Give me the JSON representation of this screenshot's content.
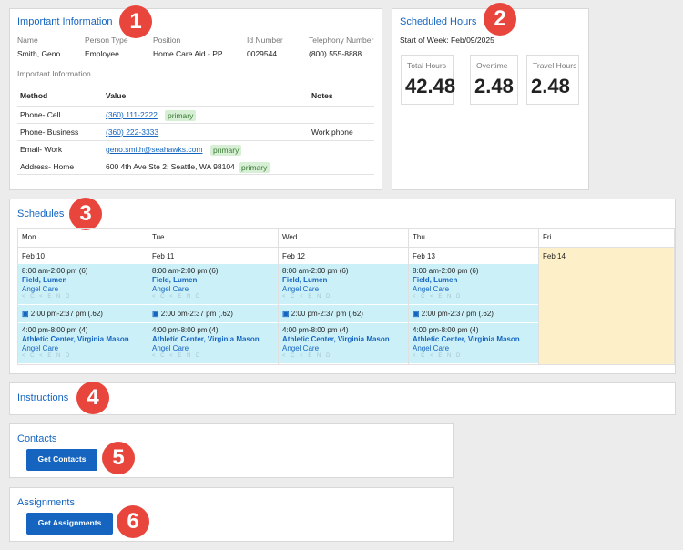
{
  "important_info": {
    "title": "Important Information",
    "name_label": "Name",
    "name": "Smith, Geno",
    "person_type_label": "Person Type",
    "person_type": "Employee",
    "position_label": "Position",
    "position": "Home Care Aid - PP",
    "id_label": "Id Number",
    "id": "0029544",
    "phone_label": "Telephony Number",
    "phone": "(800) 555-8888",
    "sub_title": "Important Information",
    "col_method": "Method",
    "col_value": "Value",
    "col_notes": "Notes",
    "rows": [
      {
        "method": "Phone- Cell",
        "value": "(360) 111-2222",
        "badge": "primary",
        "notes": ""
      },
      {
        "method": "Phone- Business",
        "value": "(360) 222-3333",
        "badge": "",
        "notes": "Work phone"
      },
      {
        "method": "Email- Work",
        "value": "geno.smith@seahawks.com",
        "badge": "primary",
        "notes": ""
      },
      {
        "method": "Address- Home",
        "value": "600 4th Ave Ste 2; Seattle, WA 98104",
        "badge": "primary",
        "notes": ""
      }
    ]
  },
  "scheduled_hours": {
    "title": "Scheduled Hours",
    "start_of_week": "Start of Week: Feb/09/2025",
    "stats": [
      {
        "label": "Total Hours",
        "value": "42.48"
      },
      {
        "label": "Overtime",
        "value": "2.48"
      },
      {
        "label": "Travel Hours",
        "value": "2.48"
      }
    ]
  },
  "schedules": {
    "title": "Schedules",
    "days": [
      {
        "day": "Mon",
        "date": "Feb 10"
      },
      {
        "day": "Tue",
        "date": "Feb 11"
      },
      {
        "day": "Wed",
        "date": "Feb 12"
      },
      {
        "day": "Thu",
        "date": "Feb 13"
      },
      {
        "day": "Fri",
        "date": "Feb 14"
      }
    ],
    "shift1": {
      "time": "8:00 am-2:00 pm (6)",
      "location": "Field, Lumen",
      "agency": "Angel Care",
      "icons": "< C < E N D"
    },
    "travel": {
      "time": "2:00 pm-2:37 pm (.62)"
    },
    "shift2": {
      "time": "4:00 pm-8:00 pm (4)",
      "location": "Athletic Center, Virginia Mason",
      "agency": "Angel Care",
      "icons": "< C < E N D"
    }
  },
  "instructions": {
    "title": "Instructions"
  },
  "contacts": {
    "title": "Contacts",
    "button": "Get Contacts"
  },
  "assignments": {
    "title": "Assignments",
    "button": "Get Assignments"
  },
  "markers": [
    "1",
    "2",
    "3",
    "4",
    "5",
    "6"
  ],
  "colors": {
    "accent": "#1565c0",
    "marker": "#e8453c",
    "shift_bg": "#ccf0f8",
    "today_bg": "#fdf0c8"
  }
}
